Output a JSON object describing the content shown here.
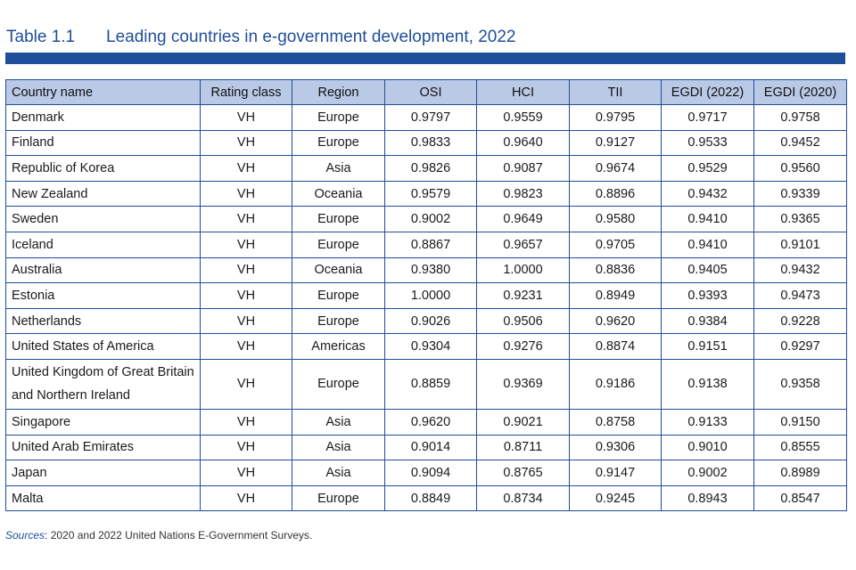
{
  "table_number": "Table 1.1",
  "title": "Leading countries in e-government development, 2022",
  "columns": [
    "Country name",
    "Rating class",
    "Region",
    "OSI",
    "HCI",
    "TII",
    "EGDI (2022)",
    "EGDI (2020)"
  ],
  "rows": [
    [
      "Denmark",
      "VH",
      "Europe",
      "0.9797",
      "0.9559",
      "0.9795",
      "0.9717",
      "0.9758"
    ],
    [
      "Finland",
      "VH",
      "Europe",
      "0.9833",
      "0.9640",
      "0.9127",
      "0.9533",
      "0.9452"
    ],
    [
      "Republic of Korea",
      "VH",
      "Asia",
      "0.9826",
      "0.9087",
      "0.9674",
      "0.9529",
      "0.9560"
    ],
    [
      "New Zealand",
      "VH",
      "Oceania",
      "0.9579",
      "0.9823",
      "0.8896",
      "0.9432",
      "0.9339"
    ],
    [
      "Sweden",
      "VH",
      "Europe",
      "0.9002",
      "0.9649",
      "0.9580",
      "0.9410",
      "0.9365"
    ],
    [
      "Iceland",
      "VH",
      "Europe",
      "0.8867",
      "0.9657",
      "0.9705",
      "0.9410",
      "0.9101"
    ],
    [
      "Australia",
      "VH",
      "Oceania",
      "0.9380",
      "1.0000",
      "0.8836",
      "0.9405",
      "0.9432"
    ],
    [
      "Estonia",
      "VH",
      "Europe",
      "1.0000",
      "0.9231",
      "0.8949",
      "0.9393",
      "0.9473"
    ],
    [
      "Netherlands",
      "VH",
      "Europe",
      "0.9026",
      "0.9506",
      "0.9620",
      "0.9384",
      "0.9228"
    ],
    [
      "United States of America",
      "VH",
      "Americas",
      "0.9304",
      "0.9276",
      "0.8874",
      "0.9151",
      "0.9297"
    ],
    [
      "United Kingdom of Great Britain and Northern Ireland",
      "VH",
      "Europe",
      "0.8859",
      "0.9369",
      "0.9186",
      "0.9138",
      "0.9358"
    ],
    [
      "Singapore",
      "VH",
      "Asia",
      "0.9620",
      "0.9021",
      "0.8758",
      "0.9133",
      "0.9150"
    ],
    [
      "United Arab Emirates",
      "VH",
      "Asia",
      "0.9014",
      "0.8711",
      "0.9306",
      "0.9010",
      "0.8555"
    ],
    [
      "Japan",
      "VH",
      "Asia",
      "0.9094",
      "0.8765",
      "0.9147",
      "0.9002",
      "0.8989"
    ],
    [
      "Malta",
      "VH",
      "Europe",
      "0.8849",
      "0.8734",
      "0.9245",
      "0.8943",
      "0.8547"
    ]
  ],
  "source_label": "Sources",
  "source_text": ": 2020 and 2022 United Nations E-Government Surveys.",
  "colors": {
    "accent": "#1f4e9a",
    "header_bg": "#b9c9e6"
  }
}
